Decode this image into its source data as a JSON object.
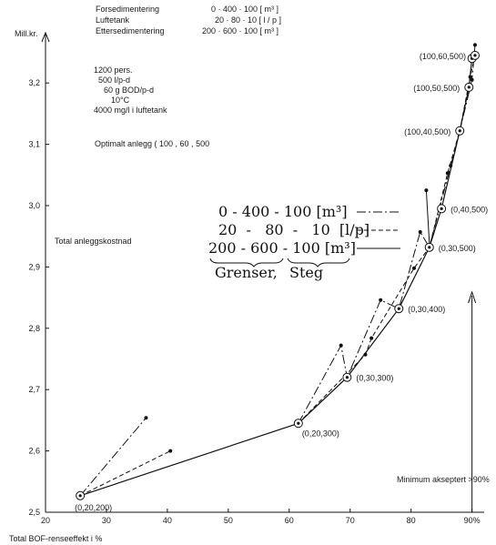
{
  "chart_data": {
    "type": "line",
    "ylabel": "Mill.kr.",
    "xlabel": "Total BOF-renseeffekt i %",
    "side_label": "Total anleggskostnad",
    "xlim": [
      20,
      92
    ],
    "ylim": [
      2.5,
      3.27
    ],
    "x_ticks": [
      20,
      30,
      40,
      50,
      60,
      70,
      80,
      90
    ],
    "x_tick_labels": [
      "20",
      "30",
      "40",
      "50",
      "60",
      "70",
      "80",
      "90%"
    ],
    "y_ticks": [
      2.5,
      2.6,
      2.7,
      2.8,
      2.9,
      3.0,
      3.1,
      3.2
    ],
    "y_tick_labels": [
      "2,5",
      "2,6",
      "2,7",
      "2,8",
      "2,9",
      "3,0",
      "3,1",
      "3,2"
    ],
    "grid": false,
    "series": [
      {
        "name": "200 - 600 - 100 [m³]",
        "style": "solid",
        "x": [
          25.7,
          61.5,
          69.5,
          78,
          83,
          85,
          88,
          89.5,
          90,
          90.5
        ],
        "y": [
          2.527,
          2.645,
          2.72,
          2.832,
          2.932,
          2.995,
          3.122,
          3.193,
          3.24,
          3.245
        ]
      },
      {
        "name": "0 - 400 - 100 [m³]",
        "style": "dashdot",
        "x": [
          25.7,
          36.5
        ],
        "y": [
          2.527,
          2.654
        ]
      },
      {
        "name": "0 - 400 - 100 [m³]",
        "style": "dashdot",
        "x": [
          61.5,
          68.5,
          69.5,
          75,
          78,
          81.5,
          83,
          86.5,
          88,
          90,
          90.5
        ],
        "y": [
          2.645,
          2.772,
          2.72,
          2.846,
          2.832,
          2.957,
          2.932,
          3.065,
          3.122,
          3.205,
          3.262
        ]
      },
      {
        "name": "20 - 80 - 10 [l/p]",
        "style": "dashed",
        "x": [
          25.7,
          40.5
        ],
        "y": [
          2.527,
          2.6
        ]
      },
      {
        "name": "20 - 80 - 10 [l/p]",
        "style": "dashed",
        "x": [
          61.5,
          72.5,
          73.5,
          80.5,
          83,
          86,
          88,
          89.7,
          90.5
        ],
        "y": [
          2.645,
          2.757,
          2.784,
          2.898,
          2.932,
          3.053,
          3.122,
          3.21,
          3.245
        ]
      }
    ],
    "extra_points": [
      {
        "x": 82.5,
        "y": 3.025
      }
    ],
    "point_labels": [
      {
        "x": 25.7,
        "y": 2.527,
        "text": "(0,20,200)",
        "anchor": "below"
      },
      {
        "x": 61.5,
        "y": 2.645,
        "text": "(0,20,300)",
        "anchor": "below-right"
      },
      {
        "x": 69.5,
        "y": 2.72,
        "text": "(0,30,300)",
        "anchor": "right"
      },
      {
        "x": 78,
        "y": 2.832,
        "text": "(0,30,400)",
        "anchor": "right"
      },
      {
        "x": 83,
        "y": 2.932,
        "text": "(0,30,500)",
        "anchor": "right"
      },
      {
        "x": 85,
        "y": 2.995,
        "text": "(0,40,500)",
        "anchor": "right"
      },
      {
        "x": 88,
        "y": 3.122,
        "text": "(100,40,500)",
        "anchor": "left"
      },
      {
        "x": 89.5,
        "y": 3.193,
        "text": "(100,50,500)",
        "anchor": "left"
      },
      {
        "x": 90.5,
        "y": 3.245,
        "text": "(100,60,500)",
        "anchor": "left"
      }
    ],
    "minimum_line": {
      "x": 90,
      "label": "Minimum akseptert >90%"
    },
    "ranges_header": {
      "rows": [
        {
          "name": "Forsedimentering",
          "value": "0 · 400 · 100  [ m³ ]"
        },
        {
          "name": "Luftetank",
          "value": "20 · 80 · 10  [ l / p ]"
        },
        {
          "name": "Ettersedimentering",
          "value": "200 · 600 · 100  [ m³ ]"
        }
      ]
    },
    "assumptions": [
      "1200 pers.",
      "500 l/p-d",
      "60 g BOD/p-d",
      "10°C",
      "4000 mg/l i luftetank"
    ],
    "optimum_text": "Optimalt anlegg ( 100 , 60 , 500",
    "legend": {
      "position": "center",
      "entries": [
        {
          "text": "0  -  400  -  100  [m³]",
          "style": "dashdot"
        },
        {
          "text": "20  -   80  -   10  [l/p]",
          "style": "dashed"
        },
        {
          "text": "200  -  600  -  100  [m³]",
          "style": "solid"
        }
      ],
      "footer_left": "Grenser,",
      "footer_right": "Steg"
    }
  }
}
